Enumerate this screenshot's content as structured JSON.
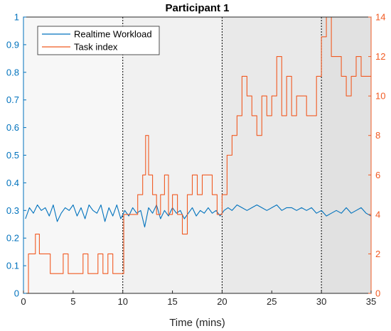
{
  "chart_data": {
    "type": "line",
    "title": "Participant 1",
    "xlabel": "Time (mins)",
    "ylabel_left": "",
    "ylabel_right": "",
    "xlim": [
      0,
      35
    ],
    "ylim_left": [
      0,
      1
    ],
    "ylim_right": [
      0,
      14
    ],
    "x_ticks": [
      "0",
      "5",
      "10",
      "15",
      "20",
      "25",
      "30",
      "35"
    ],
    "y_left_ticks": [
      "0",
      "0.1",
      "0.2",
      "0.3",
      "0.4",
      "0.5",
      "0.6",
      "0.7",
      "0.8",
      "0.9",
      "1"
    ],
    "y_right_ticks": [
      "0",
      "2",
      "4",
      "6",
      "8",
      "10",
      "12",
      "14"
    ],
    "phase_boundaries": [
      10,
      20,
      30
    ],
    "phase_shading": [
      "#f7f7f7",
      "#f1f1f1",
      "#e9e9e9",
      "#e1e1e1"
    ],
    "legend": {
      "placement": "top-left"
    },
    "series": [
      {
        "name": "Realtime Workload",
        "axis": "left",
        "color": "#0072BD",
        "x": [
          0.2,
          0.6,
          1.0,
          1.4,
          1.8,
          2.2,
          2.6,
          3.0,
          3.4,
          3.8,
          4.2,
          4.6,
          5.0,
          5.4,
          5.8,
          6.2,
          6.6,
          7.0,
          7.4,
          7.8,
          8.2,
          8.6,
          9.0,
          9.4,
          9.8,
          10.2,
          10.6,
          11.0,
          11.4,
          11.8,
          12.2,
          12.6,
          13.0,
          13.4,
          13.8,
          14.2,
          14.6,
          15.0,
          15.4,
          15.8,
          16.2,
          16.6,
          17.0,
          17.4,
          17.8,
          18.2,
          18.6,
          19.0,
          19.4,
          19.8,
          20.2,
          20.6,
          21.0,
          21.5,
          22.0,
          22.5,
          23.0,
          23.5,
          24.0,
          24.5,
          25.0,
          25.5,
          26.0,
          26.5,
          27.0,
          27.5,
          28.0,
          28.5,
          29.0,
          29.5,
          30.0,
          30.5,
          31.0,
          31.5,
          32.0,
          32.5,
          33.0,
          33.5,
          34.0,
          34.5,
          35.0
        ],
        "y": [
          0.27,
          0.31,
          0.29,
          0.32,
          0.3,
          0.31,
          0.28,
          0.32,
          0.26,
          0.29,
          0.31,
          0.3,
          0.32,
          0.28,
          0.31,
          0.27,
          0.32,
          0.3,
          0.29,
          0.32,
          0.26,
          0.31,
          0.28,
          0.32,
          0.27,
          0.3,
          0.28,
          0.31,
          0.29,
          0.3,
          0.24,
          0.31,
          0.29,
          0.32,
          0.27,
          0.3,
          0.28,
          0.31,
          0.29,
          0.3,
          0.27,
          0.29,
          0.31,
          0.28,
          0.3,
          0.29,
          0.31,
          0.29,
          0.3,
          0.28,
          0.3,
          0.31,
          0.3,
          0.32,
          0.31,
          0.3,
          0.31,
          0.32,
          0.31,
          0.3,
          0.31,
          0.32,
          0.3,
          0.31,
          0.31,
          0.3,
          0.31,
          0.3,
          0.31,
          0.29,
          0.3,
          0.28,
          0.29,
          0.3,
          0.29,
          0.31,
          0.29,
          0.3,
          0.31,
          0.29,
          0.28
        ]
      },
      {
        "name": "Task index",
        "axis": "right",
        "color": "#F15A22",
        "x": [
          0.2,
          0.5,
          0.8,
          1.2,
          1.6,
          2.0,
          2.4,
          2.7,
          3.0,
          3.5,
          4.0,
          4.5,
          5.0,
          5.5,
          6.0,
          6.5,
          7.0,
          7.5,
          8.0,
          8.5,
          9.0,
          9.5,
          9.9,
          10.1,
          10.5,
          11.0,
          11.5,
          12.0,
          12.3,
          12.6,
          13.0,
          13.4,
          13.8,
          14.2,
          14.6,
          15.0,
          15.5,
          16.0,
          16.5,
          17.0,
          17.5,
          18.0,
          18.5,
          19.0,
          19.5,
          20.0,
          20.5,
          21.0,
          21.5,
          22.0,
          22.5,
          23.0,
          23.5,
          24.0,
          24.5,
          25.0,
          25.5,
          26.0,
          26.5,
          27.0,
          27.5,
          28.0,
          28.5,
          29.0,
          29.5,
          30.0,
          30.5,
          31.0,
          31.5,
          32.0,
          32.5,
          33.0,
          33.5,
          34.0,
          34.5,
          35.0
        ],
        "y": [
          0,
          2,
          2,
          3,
          2,
          2,
          2,
          1,
          1,
          1,
          2,
          1,
          1,
          1,
          2,
          1,
          1,
          2,
          1,
          2,
          1,
          1,
          1,
          4,
          4,
          4,
          5,
          6,
          8,
          6,
          5,
          4,
          5,
          6,
          4,
          5,
          4,
          3,
          5,
          6,
          5,
          6,
          6,
          5,
          4,
          5,
          7,
          8,
          9,
          11,
          10,
          9,
          8,
          10,
          9,
          10,
          12,
          9,
          11,
          9,
          10,
          10,
          9,
          9,
          11,
          13,
          14,
          12,
          12,
          11,
          10,
          11,
          12,
          11,
          11,
          11
        ]
      }
    ]
  }
}
